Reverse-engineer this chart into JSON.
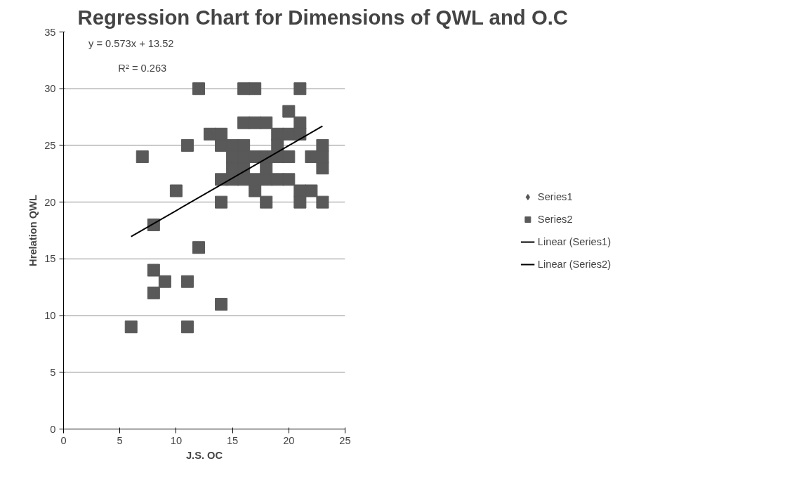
{
  "chart_data": {
    "type": "scatter",
    "title": "Regression Chart for Dimensions of QWL and O.C",
    "xlabel": "J.S. OC",
    "ylabel": "Hrelation QWL",
    "annotations": [
      "y = 0.573x + 13.52",
      "R² = 0.263"
    ],
    "xlim": [
      0,
      25
    ],
    "xticks": [
      0,
      5,
      10,
      15,
      20,
      25
    ],
    "ylim": [
      0,
      35
    ],
    "yticks": [
      0,
      5,
      10,
      15,
      20,
      25,
      30,
      35
    ],
    "grid": "y",
    "legend": "right",
    "series": [
      {
        "name": "Series1",
        "type": "scatter",
        "marker": "diamond",
        "color": "#555555"
      },
      {
        "name": "Series2",
        "marker": "square",
        "color": "#595959",
        "x": [
          6,
          7,
          8,
          8,
          8,
          9,
          10,
          11,
          11,
          11,
          12,
          12,
          13,
          14,
          14,
          14,
          14,
          14,
          15,
          15,
          15,
          15,
          16,
          16,
          16,
          16,
          16,
          16,
          17,
          17,
          17,
          17,
          17,
          18,
          18,
          18,
          18,
          18,
          19,
          19,
          19,
          19,
          20,
          20,
          20,
          20,
          21,
          21,
          21,
          21,
          21,
          22,
          22,
          23,
          23,
          23,
          23
        ],
        "values": [
          9,
          24,
          18,
          14,
          12,
          13,
          21,
          25,
          13,
          9,
          30,
          16,
          26,
          25,
          26,
          22,
          20,
          11,
          22,
          23,
          24,
          25,
          30,
          27,
          22,
          23,
          24,
          25,
          30,
          27,
          24,
          21,
          22,
          27,
          20,
          22,
          23,
          24,
          26,
          25,
          24,
          22,
          28,
          26,
          24,
          22,
          30,
          27,
          26,
          21,
          20,
          24,
          21,
          20,
          23,
          24,
          25
        ]
      },
      {
        "name": "Linear (Series1)",
        "type": "line",
        "color": "#000000"
      },
      {
        "name": "Linear (Series2)",
        "type": "line",
        "color": "#000000",
        "x": [
          6,
          23
        ],
        "values": [
          16.96,
          26.7
        ]
      }
    ]
  }
}
